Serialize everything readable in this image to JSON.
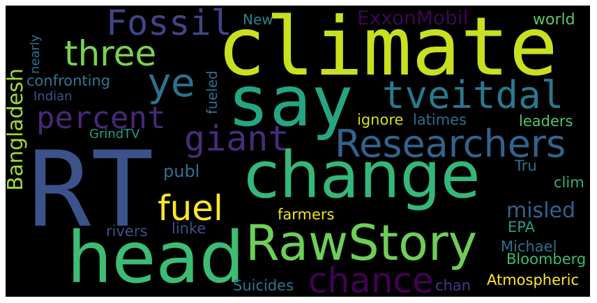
{
  "words": {
    "rt": {
      "text": "RT",
      "color": "#3b528b"
    },
    "climate": {
      "text": "climate",
      "color": "#c8e020"
    },
    "say": {
      "text": "say",
      "color": "#25a584"
    },
    "change": {
      "text": "change",
      "color": "#35b779"
    },
    "head": {
      "text": "head",
      "color": "#3dbc74"
    },
    "rawstory": {
      "text": "RawStory",
      "color": "#6ece58"
    },
    "researchers": {
      "text": "Researchers",
      "color": "#33628d"
    },
    "tveitdal": {
      "text": "tveitdal",
      "color": "#2a788e"
    },
    "fossil": {
      "text": "Fossil",
      "color": "#414487"
    },
    "three": {
      "text": "three",
      "color": "#7ad151"
    },
    "ye": {
      "text": "ye",
      "color": "#2c728e"
    },
    "percent": {
      "text": "percent",
      "color": "#482878"
    },
    "giant": {
      "text": "giant",
      "color": "#472c7a"
    },
    "chance": {
      "text": "chance",
      "color": "#440154"
    },
    "fuel": {
      "text": "fuel",
      "color": "#fde725"
    },
    "bangladesh": {
      "text": "Bangladesh",
      "color": "#a0da39"
    },
    "exxonmobil": {
      "text": "ExxonMobil",
      "color": "#3e0751"
    },
    "new": {
      "text": "New",
      "color": "#25858e"
    },
    "world": {
      "text": "world",
      "color": "#5ec962"
    },
    "nearly": {
      "text": "nearly",
      "color": "#2d708e"
    },
    "fueled": {
      "text": "fueled",
      "color": "#2c728e"
    },
    "confronting": {
      "text": "confronting",
      "color": "#29798e"
    },
    "indian": {
      "text": "Indian",
      "color": "#3a538b"
    },
    "grindtv": {
      "text": "GrindTV",
      "color": "#1f9e89"
    },
    "ignore": {
      "text": "ignore",
      "color": "#d2e21b"
    },
    "latimes": {
      "text": "latimes",
      "color": "#2e6e8e"
    },
    "leaders": {
      "text": "leaders",
      "color": "#54c568"
    },
    "publ": {
      "text": "publ",
      "color": "#2c728e"
    },
    "tru": {
      "text": "Tru",
      "color": "#2c728e"
    },
    "clim": {
      "text": "clim",
      "color": "#2eb37c"
    },
    "misled": {
      "text": "misled",
      "color": "#33628d"
    },
    "farmers": {
      "text": "farmers",
      "color": "#f1e51d"
    },
    "rivers": {
      "text": "rivers",
      "color": "#3b528b"
    },
    "linke": {
      "text": "linke",
      "color": "#3b528b"
    },
    "epa": {
      "text": "EPA",
      "color": "#1fa187"
    },
    "michael": {
      "text": "Michael",
      "color": "#2d708e"
    },
    "bloomberg": {
      "text": "Bloomberg",
      "color": "#3dbc74"
    },
    "suicides": {
      "text": "Suicides",
      "color": "#2a788e"
    },
    "chan": {
      "text": "chan",
      "color": "#443983"
    },
    "atmospheric": {
      "text": "Atmospheric",
      "color": "#fde725"
    }
  }
}
